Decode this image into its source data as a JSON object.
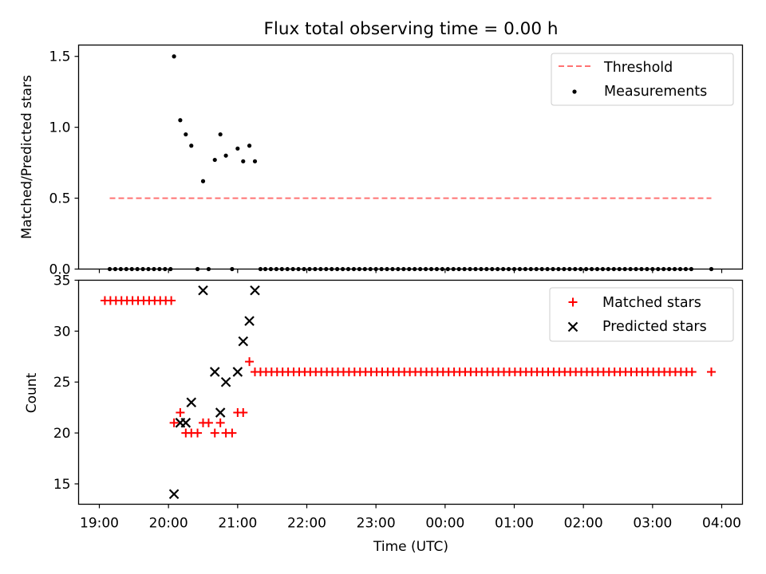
{
  "title": "Flux total observing time = 0.00 h",
  "colors": {
    "threshold": "#ff7373",
    "measurement": "#000000",
    "matched": "#ff0000",
    "predicted": "#000000"
  },
  "chart_data": [
    {
      "type": "scatter",
      "title": "Flux total observing time = 0.00 h",
      "ylabel": "Matched/Predicted stars",
      "xlabel": "",
      "x_unit": "hours since 00:00 UTC",
      "xlim": [
        -5.3,
        4.3
      ],
      "ylim": [
        0.0,
        1.58
      ],
      "yticks": [
        0.0,
        0.5,
        1.0,
        1.5
      ],
      "ytick_labels": [
        "0.0",
        "0.5",
        "1.0",
        "1.5"
      ],
      "legend_position": "top-right",
      "threshold": {
        "name": "Threshold",
        "y": 0.5,
        "x_range": [
          -4.85,
          3.85
        ]
      },
      "series": [
        {
          "name": "Measurements",
          "points": [
            [
              -4.85,
              0.0
            ],
            [
              -4.77,
              0.0
            ],
            [
              -4.69,
              0.0
            ],
            [
              -4.61,
              0.0
            ],
            [
              -4.53,
              0.0
            ],
            [
              -4.45,
              0.0
            ],
            [
              -4.37,
              0.0
            ],
            [
              -4.29,
              0.0
            ],
            [
              -4.21,
              0.0
            ],
            [
              -4.13,
              0.0
            ],
            [
              -4.05,
              0.0
            ],
            [
              -3.97,
              0.0
            ],
            [
              -3.92,
              1.5
            ],
            [
              -3.83,
              1.05
            ],
            [
              -3.75,
              0.95
            ],
            [
              -3.67,
              0.87
            ],
            [
              -3.58,
              0.0
            ],
            [
              -3.5,
              0.62
            ],
            [
              -3.42,
              0.0
            ],
            [
              -3.33,
              0.77
            ],
            [
              -3.25,
              0.95
            ],
            [
              -3.17,
              0.8
            ],
            [
              -3.08,
              0.0
            ],
            [
              -3.0,
              0.85
            ],
            [
              -2.92,
              0.76
            ],
            [
              -2.83,
              0.87
            ],
            [
              -2.75,
              0.76
            ],
            [
              -2.67,
              0.0
            ],
            [
              -2.6,
              0.0
            ],
            [
              -2.52,
              0.0
            ],
            [
              -2.44,
              0.0
            ],
            [
              -2.36,
              0.0
            ],
            [
              -2.28,
              0.0
            ],
            [
              -2.2,
              0.0
            ],
            [
              -2.12,
              0.0
            ],
            [
              -2.04,
              0.0
            ],
            [
              -1.96,
              0.0
            ],
            [
              -1.88,
              0.0
            ],
            [
              -1.8,
              0.0
            ],
            [
              -1.72,
              0.0
            ],
            [
              -1.64,
              0.0
            ],
            [
              -1.56,
              0.0
            ],
            [
              -1.48,
              0.0
            ],
            [
              -1.4,
              0.0
            ],
            [
              -1.32,
              0.0
            ],
            [
              -1.24,
              0.0
            ],
            [
              -1.16,
              0.0
            ],
            [
              -1.08,
              0.0
            ],
            [
              -1.0,
              0.0
            ],
            [
              -0.92,
              0.0
            ],
            [
              -0.84,
              0.0
            ],
            [
              -0.76,
              0.0
            ],
            [
              -0.68,
              0.0
            ],
            [
              -0.6,
              0.0
            ],
            [
              -0.52,
              0.0
            ],
            [
              -0.44,
              0.0
            ],
            [
              -0.36,
              0.0
            ],
            [
              -0.28,
              0.0
            ],
            [
              -0.2,
              0.0
            ],
            [
              -0.12,
              0.0
            ],
            [
              -0.04,
              0.0
            ],
            [
              0.04,
              0.0
            ],
            [
              0.12,
              0.0
            ],
            [
              0.2,
              0.0
            ],
            [
              0.28,
              0.0
            ],
            [
              0.36,
              0.0
            ],
            [
              0.44,
              0.0
            ],
            [
              0.52,
              0.0
            ],
            [
              0.6,
              0.0
            ],
            [
              0.68,
              0.0
            ],
            [
              0.76,
              0.0
            ],
            [
              0.84,
              0.0
            ],
            [
              0.92,
              0.0
            ],
            [
              1.0,
              0.0
            ],
            [
              1.08,
              0.0
            ],
            [
              1.16,
              0.0
            ],
            [
              1.24,
              0.0
            ],
            [
              1.32,
              0.0
            ],
            [
              1.4,
              0.0
            ],
            [
              1.48,
              0.0
            ],
            [
              1.56,
              0.0
            ],
            [
              1.64,
              0.0
            ],
            [
              1.72,
              0.0
            ],
            [
              1.8,
              0.0
            ],
            [
              1.88,
              0.0
            ],
            [
              1.96,
              0.0
            ],
            [
              2.04,
              0.0
            ],
            [
              2.12,
              0.0
            ],
            [
              2.2,
              0.0
            ],
            [
              2.28,
              0.0
            ],
            [
              2.36,
              0.0
            ],
            [
              2.44,
              0.0
            ],
            [
              2.52,
              0.0
            ],
            [
              2.6,
              0.0
            ],
            [
              2.68,
              0.0
            ],
            [
              2.76,
              0.0
            ],
            [
              2.84,
              0.0
            ],
            [
              2.92,
              0.0
            ],
            [
              3.0,
              0.0
            ],
            [
              3.08,
              0.0
            ],
            [
              3.16,
              0.0
            ],
            [
              3.24,
              0.0
            ],
            [
              3.32,
              0.0
            ],
            [
              3.4,
              0.0
            ],
            [
              3.48,
              0.0
            ],
            [
              3.56,
              0.0
            ],
            [
              3.85,
              0.0
            ]
          ]
        }
      ],
      "legend": [
        "Threshold",
        "Measurements"
      ]
    },
    {
      "type": "scatter",
      "xlabel": "Time (UTC)",
      "ylabel": "Count",
      "x_unit": "hours since 00:00 UTC",
      "xlim": [
        -5.3,
        4.3
      ],
      "ylim": [
        13.0,
        35.0
      ],
      "xticks": [
        -5,
        -4,
        -3,
        -2,
        -1,
        0,
        1,
        2,
        3,
        4
      ],
      "xtick_labels": [
        "19:00",
        "20:00",
        "21:00",
        "22:00",
        "23:00",
        "00:00",
        "01:00",
        "02:00",
        "03:00",
        "04:00"
      ],
      "yticks": [
        15,
        20,
        25,
        30,
        35
      ],
      "ytick_labels": [
        "15",
        "20",
        "25",
        "30",
        "35"
      ],
      "legend_position": "top-right",
      "series": [
        {
          "name": "Matched stars",
          "marker": "+",
          "points": [
            [
              -4.92,
              33
            ],
            [
              -4.84,
              33
            ],
            [
              -4.76,
              33
            ],
            [
              -4.68,
              33
            ],
            [
              -4.6,
              33
            ],
            [
              -4.52,
              33
            ],
            [
              -4.44,
              33
            ],
            [
              -4.36,
              33
            ],
            [
              -4.28,
              33
            ],
            [
              -4.2,
              33
            ],
            [
              -4.12,
              33
            ],
            [
              -4.04,
              33
            ],
            [
              -3.96,
              33
            ],
            [
              -3.92,
              21
            ],
            [
              -3.83,
              22
            ],
            [
              -3.75,
              20
            ],
            [
              -3.67,
              20
            ],
            [
              -3.58,
              20
            ],
            [
              -3.5,
              21
            ],
            [
              -3.42,
              21
            ],
            [
              -3.33,
              20
            ],
            [
              -3.25,
              21
            ],
            [
              -3.17,
              20
            ],
            [
              -3.08,
              20
            ],
            [
              -3.0,
              22
            ],
            [
              -2.92,
              22
            ],
            [
              -2.83,
              27
            ],
            [
              -2.75,
              26
            ],
            [
              -2.67,
              26
            ],
            [
              -2.59,
              26
            ],
            [
              -2.51,
              26
            ],
            [
              -2.43,
              26
            ],
            [
              -2.35,
              26
            ],
            [
              -2.27,
              26
            ],
            [
              -2.19,
              26
            ],
            [
              -2.11,
              26
            ],
            [
              -2.03,
              26
            ],
            [
              -1.95,
              26
            ],
            [
              -1.87,
              26
            ],
            [
              -1.79,
              26
            ],
            [
              -1.71,
              26
            ],
            [
              -1.63,
              26
            ],
            [
              -1.55,
              26
            ],
            [
              -1.47,
              26
            ],
            [
              -1.39,
              26
            ],
            [
              -1.31,
              26
            ],
            [
              -1.23,
              26
            ],
            [
              -1.15,
              26
            ],
            [
              -1.07,
              26
            ],
            [
              -0.99,
              26
            ],
            [
              -0.91,
              26
            ],
            [
              -0.83,
              26
            ],
            [
              -0.75,
              26
            ],
            [
              -0.67,
              26
            ],
            [
              -0.59,
              26
            ],
            [
              -0.51,
              26
            ],
            [
              -0.43,
              26
            ],
            [
              -0.35,
              26
            ],
            [
              -0.27,
              26
            ],
            [
              -0.19,
              26
            ],
            [
              -0.11,
              26
            ],
            [
              -0.03,
              26
            ],
            [
              0.05,
              26
            ],
            [
              0.13,
              26
            ],
            [
              0.21,
              26
            ],
            [
              0.29,
              26
            ],
            [
              0.37,
              26
            ],
            [
              0.45,
              26
            ],
            [
              0.53,
              26
            ],
            [
              0.61,
              26
            ],
            [
              0.69,
              26
            ],
            [
              0.77,
              26
            ],
            [
              0.85,
              26
            ],
            [
              0.93,
              26
            ],
            [
              1.01,
              26
            ],
            [
              1.09,
              26
            ],
            [
              1.17,
              26
            ],
            [
              1.25,
              26
            ],
            [
              1.33,
              26
            ],
            [
              1.41,
              26
            ],
            [
              1.49,
              26
            ],
            [
              1.57,
              26
            ],
            [
              1.65,
              26
            ],
            [
              1.73,
              26
            ],
            [
              1.81,
              26
            ],
            [
              1.89,
              26
            ],
            [
              1.97,
              26
            ],
            [
              2.05,
              26
            ],
            [
              2.13,
              26
            ],
            [
              2.21,
              26
            ],
            [
              2.29,
              26
            ],
            [
              2.37,
              26
            ],
            [
              2.45,
              26
            ],
            [
              2.53,
              26
            ],
            [
              2.61,
              26
            ],
            [
              2.69,
              26
            ],
            [
              2.77,
              26
            ],
            [
              2.85,
              26
            ],
            [
              2.93,
              26
            ],
            [
              3.01,
              26
            ],
            [
              3.09,
              26
            ],
            [
              3.17,
              26
            ],
            [
              3.25,
              26
            ],
            [
              3.33,
              26
            ],
            [
              3.41,
              26
            ],
            [
              3.49,
              26
            ],
            [
              3.57,
              26
            ],
            [
              3.85,
              26
            ]
          ]
        },
        {
          "name": "Predicted stars",
          "marker": "x",
          "points": [
            [
              -3.92,
              14
            ],
            [
              -3.83,
              21
            ],
            [
              -3.75,
              21
            ],
            [
              -3.67,
              23
            ],
            [
              -3.5,
              34
            ],
            [
              -3.33,
              26
            ],
            [
              -3.25,
              22
            ],
            [
              -3.17,
              25
            ],
            [
              -3.0,
              26
            ],
            [
              -2.92,
              29
            ],
            [
              -2.83,
              31
            ],
            [
              -2.75,
              34
            ]
          ]
        }
      ],
      "legend": [
        "Matched stars",
        "Predicted stars"
      ]
    }
  ]
}
